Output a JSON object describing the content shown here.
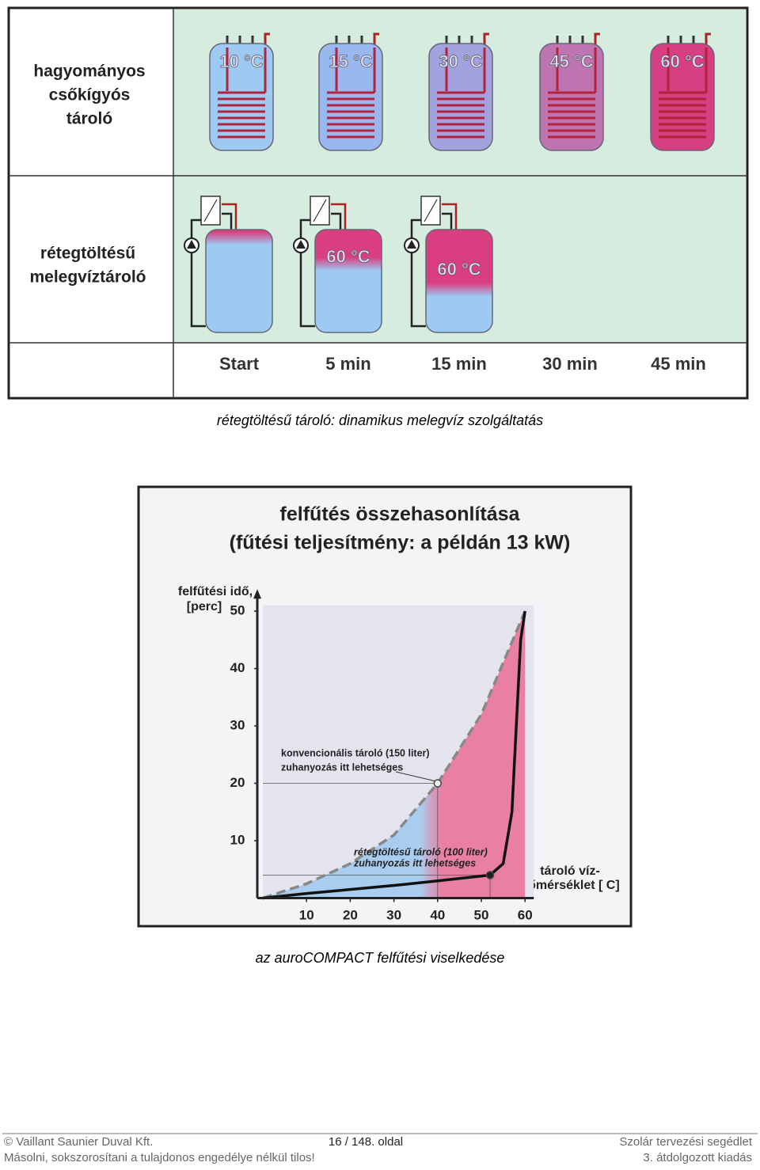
{
  "figure1": {
    "row_labels": [
      [
        "hagyományos",
        "csőkígyós",
        "tároló"
      ],
      [
        "rétegtöltésű",
        "melegvíztároló"
      ]
    ],
    "row1_temps": [
      "10 °C",
      "15 °C",
      "30 °C",
      "45 °C",
      "60 °C"
    ],
    "row2_temps": [
      "60 °C",
      "60 °C"
    ],
    "times": [
      "Start",
      "5 min",
      "15 min",
      "30 min",
      "45 min"
    ]
  },
  "caption1": "rétegtöltésű tároló: dinamikus melegvíz szolgáltatás",
  "figure2": {
    "type": "line",
    "title": [
      "felfűtés összehasonlítása",
      "(fűtési teljesítmény: a példán 13 kW)"
    ],
    "y_label": [
      "felfűtési idő,",
      "[perc]"
    ],
    "x_label": [
      "tároló víz-",
      "hőmérséklet [ C]"
    ],
    "xlim": [
      0,
      62
    ],
    "ylim": [
      0,
      53
    ],
    "xticks": [
      10,
      20,
      30,
      40,
      50,
      60
    ],
    "yticks": [
      10,
      20,
      30,
      40,
      50
    ],
    "series": [
      {
        "name": "konvencionális tároló (150 liter)",
        "color": "#888888",
        "x": [
          0,
          10,
          20,
          30,
          40,
          50,
          60
        ],
        "values": [
          0,
          2.5,
          6,
          11,
          20,
          32,
          50
        ]
      },
      {
        "name": "rétegtöltésű tároló (100 liter)",
        "color": "#111111",
        "x": [
          0,
          10,
          20,
          30,
          40,
          52,
          55,
          57,
          58,
          59,
          60
        ],
        "values": [
          0,
          0.8,
          1.5,
          2.2,
          3,
          4,
          6,
          15,
          30,
          45,
          50
        ]
      }
    ],
    "points": [
      {
        "x": 40,
        "y": 20,
        "label": "zuhanyozás itt lehetséges"
      },
      {
        "x": 52,
        "y": 4,
        "label": "zuhanyozás itt lehetséges"
      }
    ]
  },
  "caption2": "az auroCOMPACT felfűtési viselkedése",
  "footer": {
    "left": [
      "© Vaillant Saunier Duval Kft.",
      "Másolni, sokszorosítani a tulajdonos engedélye nélkül tilos!"
    ],
    "center": "16 / 148. oldal",
    "right": [
      "Szolár tervezési segédlet",
      "3. átdolgozott kiadás"
    ]
  }
}
